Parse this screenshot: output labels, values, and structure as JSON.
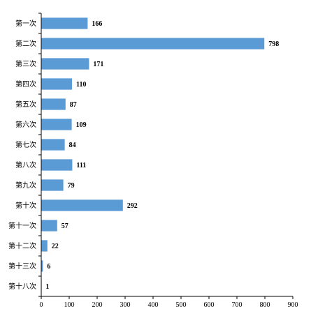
{
  "chart_data": {
    "type": "bar",
    "orientation": "horizontal",
    "title": "",
    "xlabel": "",
    "ylabel": "",
    "categories": [
      "第一次",
      "第二次",
      "第三次",
      "第四次",
      "第五次",
      "第六次",
      "第七次",
      "第八次",
      "第九次",
      "第十次",
      "第十一次",
      "第十二次",
      "第十三次",
      "第十八次"
    ],
    "values": [
      166,
      798,
      171,
      110,
      87,
      109,
      84,
      111,
      79,
      292,
      57,
      22,
      6,
      1
    ],
    "xlim": [
      0,
      900
    ],
    "xticks": [
      0,
      100,
      200,
      300,
      400,
      500,
      600,
      700,
      800,
      900
    ],
    "bar_color": "#5b9bd5",
    "grid": false,
    "legend": "none",
    "data_labels": true
  }
}
